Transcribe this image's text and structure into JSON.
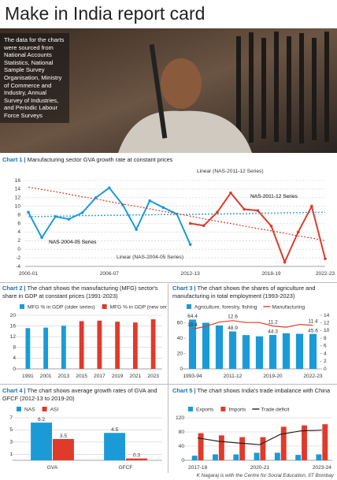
{
  "header": {
    "title": "Make in India report card",
    "photo_caption": "The data for the charts were sourced from National Accounts Statistics, National Sample Survey Organisation, Ministry of Commerce and Industry, Annual Survey of Industries, and Periodic Labour Force Surveys"
  },
  "chart_data": [
    {
      "label": "Chart 1 |",
      "title": "Manufacturing sector GVA growth rate at constant prices",
      "type": "line",
      "categories": [
        "2000-01",
        null,
        null,
        null,
        null,
        null,
        "2006-07",
        null,
        null,
        null,
        null,
        null,
        "2012-13",
        null,
        null,
        null,
        null,
        null,
        "2018-19",
        null,
        null,
        null,
        "2022-23"
      ],
      "ylim": [
        -4,
        16
      ],
      "yticks": [
        -4,
        -2,
        0,
        2,
        4,
        6,
        8,
        10,
        12,
        14,
        16
      ],
      "grid": true,
      "series": [
        {
          "name": "NAS-2004-05 Series",
          "color": "#1a9bd7",
          "markers": true,
          "values": [
            8.6,
            2.7,
            7.6,
            7,
            8.5,
            12,
            14.3,
            10.3,
            4.6,
            11.3,
            9.7,
            8.2,
            1.1,
            null,
            null,
            null,
            null,
            null,
            null,
            null,
            null,
            null,
            null
          ]
        },
        {
          "name": "NAS-2011-12 Series",
          "color": "#e03a2b",
          "markers": true,
          "values": [
            null,
            null,
            null,
            null,
            null,
            null,
            null,
            null,
            null,
            null,
            null,
            null,
            6,
            5.5,
            8.6,
            13.1,
            9.3,
            9,
            5.4,
            -3,
            4,
            10,
            -2.2
          ]
        },
        {
          "name": "Linear (NAS-2004-05 Series)",
          "color": "#1a9bd7",
          "dash": true,
          "values": [
            7.6,
            7.6,
            7.7,
            7.7,
            7.8,
            7.8,
            7.9,
            7.9,
            8.0,
            8.0,
            8.1,
            8.1,
            8.1,
            8.2,
            8.2,
            8.3,
            8.3,
            8.4,
            8.4,
            8.5,
            8.5,
            8.6,
            8.6
          ]
        },
        {
          "name": "Linear (NAS-2011-12 Series)",
          "color": "#e03a2b",
          "dash": true,
          "values": [
            14.5,
            13.9,
            13.4,
            12.8,
            12.2,
            11.7,
            11.1,
            10.5,
            10.0,
            9.4,
            8.8,
            8.3,
            7.7,
            7.1,
            6.5,
            6.0,
            5.4,
            4.8,
            4.3,
            3.7,
            3.1,
            2.6,
            2.0
          ]
        }
      ]
    },
    {
      "label": "Chart 2 |",
      "title": "The chart shows the manufacturing (MFG) sector's share in GDP at constant prices (1991-2023)",
      "type": "bar",
      "categories": [
        "1991",
        "2001",
        "2013",
        "2015",
        "2017",
        "2019",
        "2021",
        "2023"
      ],
      "ylim": [
        0,
        20
      ],
      "yticks": [
        0,
        4,
        8,
        12,
        16,
        20
      ],
      "grid": true,
      "legend": true,
      "series": [
        {
          "name": "MFG % in GDP (older series)",
          "color": "#1a9bd7",
          "values": [
            15.2,
            15.4,
            16.1,
            null,
            null,
            null,
            null,
            null
          ]
        },
        {
          "name": "MFG % in GDP (new series)",
          "color": "#e03a2b",
          "values": [
            null,
            null,
            null,
            17.8,
            18,
            17.6,
            17.3,
            18.5
          ]
        }
      ]
    },
    {
      "label": "Chart 3 |",
      "title": "The chart shows the shares of agriculture and manufacturing in total employment (1993-2023)",
      "type": "bar",
      "categories": [
        "1993-94",
        null,
        null,
        "2011-12",
        null,
        null,
        "2019-20",
        null,
        null,
        "2022-23"
      ],
      "ylim": [
        0,
        70
      ],
      "yticks": [
        0,
        20,
        40,
        60
      ],
      "y2lim": [
        0,
        14
      ],
      "y2ticks": [
        0,
        2,
        4,
        6,
        8,
        10,
        12,
        14
      ],
      "grid": false,
      "legend": true,
      "series": [
        {
          "name": "Agriculture, forestry, fishing",
          "color": "#1a9bd7",
          "values": [
            64.4,
            60.2,
            56.7,
            48.9,
            44.1,
            42.5,
            44.3,
            46.5,
            45.8,
            45.6
          ],
          "value_labels": [
            "64.4",
            null,
            null,
            "48.9",
            null,
            null,
            "44.3",
            null,
            null,
            "45.6"
          ]
        },
        {
          "name": "Manufacturing",
          "type": "line",
          "axis": "y2",
          "color": "#e03a2b",
          "values": [
            10.4,
            11.1,
            12.2,
            12.6,
            12.1,
            12.1,
            11.2,
            10.9,
            11.6,
            11.4
          ],
          "value_labels": [
            "10.4",
            null,
            null,
            "12.6",
            null,
            null,
            "11.2",
            null,
            null,
            "11.4"
          ]
        }
      ]
    },
    {
      "label": "Chart 4 |",
      "title": "The chart shows average growth rates of GVA and GFCF (2012-13 to 2019-20)",
      "type": "bar",
      "categories": [
        "GVA",
        "GFCF"
      ],
      "ylim": [
        0,
        7
      ],
      "yticks": [
        1,
        3,
        5,
        7
      ],
      "grid": true,
      "legend": true,
      "data_labels": true,
      "series": [
        {
          "name": "NAS",
          "color": "#1a9bd7",
          "values": [
            6.2,
            4.5
          ]
        },
        {
          "name": "ASI",
          "color": "#e03a2b",
          "values": [
            3.5,
            0.3
          ]
        }
      ]
    },
    {
      "label": "Chart 5 |",
      "title": "The chart shows India's trade imbalance with China",
      "type": "bar",
      "categories": [
        "2017-18",
        null,
        null,
        "2020-21",
        null,
        null,
        "2023-24"
      ],
      "ylim": [
        0,
        120
      ],
      "yticks": [
        0,
        40,
        80,
        120
      ],
      "grid": true,
      "legend": true,
      "series": [
        {
          "name": "Exports",
          "color": "#1a9bd7",
          "values": [
            13,
            16.8,
            16.6,
            21.2,
            21.3,
            15.3,
            16.7
          ]
        },
        {
          "name": "Imports",
          "color": "#e03a2b",
          "values": [
            76.4,
            70.3,
            65.3,
            65.2,
            94.6,
            98.5,
            101.7
          ]
        },
        {
          "name": "Trade deficit",
          "type": "line",
          "color": "#222",
          "values": [
            63,
            53.6,
            48.7,
            44,
            73.3,
            83.2,
            85
          ]
        }
      ]
    }
  ],
  "footer": {
    "credit": "K Nagaraj is with the Centre for Social Education, IIT Bombay"
  }
}
